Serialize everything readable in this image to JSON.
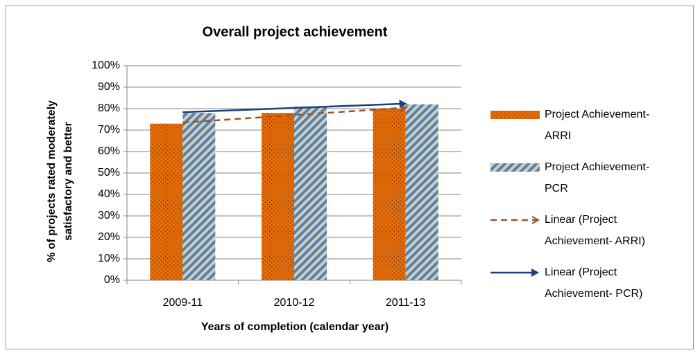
{
  "chart_data": {
    "type": "bar",
    "title": "Overall project achievement",
    "x_label": "Years of completion (calendar year)",
    "y_label": "% of projects rated moderately satisfactory and better",
    "categories": [
      "2009-11",
      "2010-12",
      "2011-13"
    ],
    "series": [
      {
        "name": "Project Achievement- ARRI",
        "color": "#e36c0a",
        "values": [
          73,
          78,
          80
        ],
        "trendline": {
          "name": "Linear (Project Achievement- ARRI)",
          "color": "#a0522d",
          "dashed": true
        }
      },
      {
        "name": "Project Achievement- PCR",
        "color": "#4f81bd",
        "values": [
          78,
          81,
          82
        ],
        "trendline": {
          "name": "Linear (Project Achievement- PCR)",
          "color": "#1f3f77",
          "dashed": false
        }
      }
    ],
    "ylim": [
      0,
      100
    ],
    "yticks": [
      {
        "value": 0,
        "label": "0%"
      },
      {
        "value": 10,
        "label": "10%"
      },
      {
        "value": 20,
        "label": "20%"
      },
      {
        "value": 30,
        "label": "30%"
      },
      {
        "value": 40,
        "label": "40%"
      },
      {
        "value": 50,
        "label": "50%"
      },
      {
        "value": 60,
        "label": "60%"
      },
      {
        "value": 70,
        "label": "70%"
      },
      {
        "value": 80,
        "label": "80%"
      },
      {
        "value": 90,
        "label": "90%"
      },
      {
        "value": 100,
        "label": "100%"
      }
    ],
    "grid": true,
    "legend": "right"
  }
}
